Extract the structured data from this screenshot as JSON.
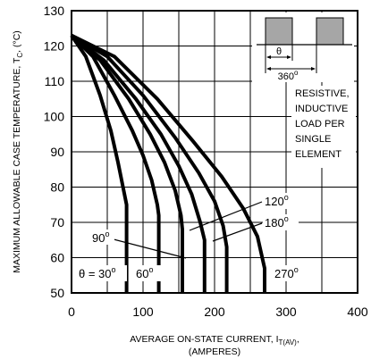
{
  "chart_data": {
    "type": "line",
    "ylabel_main": "MAXIMUM ALLOWABLE CASE TEMPERATURE, T",
    "ylabel_sub": "C",
    "ylabel_unit": ", (°C)",
    "xlabel_main": "AVERAGE ON-STATE  CURRENT, I",
    "xlabel_sub": "T(AV)",
    "xlabel_tail": ",",
    "xlabel_line2": "(AMPERES)",
    "xlim": [
      0,
      400
    ],
    "ylim": [
      50,
      130
    ],
    "x_ticks": [
      "0",
      "100",
      "200",
      "300",
      "400"
    ],
    "y_ticks": [
      "50",
      "60",
      "70",
      "80",
      "90",
      "100",
      "110",
      "120",
      "130"
    ],
    "grid": true,
    "series": [
      {
        "name": "θ = 30°",
        "x": [
          0,
          20,
          40,
          55,
          65,
          72,
          77,
          77
        ],
        "y": [
          123,
          117,
          106,
          96,
          87,
          80,
          75,
          50
        ]
      },
      {
        "name": "60°",
        "x": [
          0,
          30,
          60,
          85,
          100,
          112,
          120,
          122,
          122
        ],
        "y": [
          123,
          117,
          106,
          96,
          89,
          82,
          75,
          72,
          50
        ]
      },
      {
        "name": "90°",
        "x": [
          0,
          40,
          80,
          110,
          130,
          145,
          153,
          155,
          155
        ],
        "y": [
          123,
          116,
          105,
          95,
          87,
          79,
          72,
          68,
          50
        ]
      },
      {
        "name": "120°",
        "x": [
          0,
          45,
          90,
          125,
          150,
          168,
          180,
          186,
          186
        ],
        "y": [
          123,
          116,
          105,
          95,
          86,
          78,
          70,
          65,
          50
        ]
      },
      {
        "name": "180°",
        "x": [
          0,
          50,
          100,
          145,
          178,
          200,
          212,
          217,
          217
        ],
        "y": [
          123,
          117,
          106,
          94,
          84,
          76,
          69,
          63,
          50
        ]
      },
      {
        "name": "270°",
        "x": [
          0,
          60,
          120,
          170,
          210,
          240,
          260,
          270,
          270
        ],
        "y": [
          123,
          117,
          105,
          93,
          83,
          74,
          66,
          57,
          50
        ]
      }
    ],
    "annotations": {
      "theta30": "θ = 30",
      "deg60": "60",
      "deg90": "90",
      "deg120": "120",
      "deg180": "180",
      "deg270": "270",
      "degree_mark": "o",
      "inset_theta": "θ",
      "inset_360": "360",
      "note_lines": [
        "RESISTIVE,",
        "INDUCTIVE",
        "LOAD PER",
        "SINGLE",
        "ELEMENT"
      ]
    }
  }
}
